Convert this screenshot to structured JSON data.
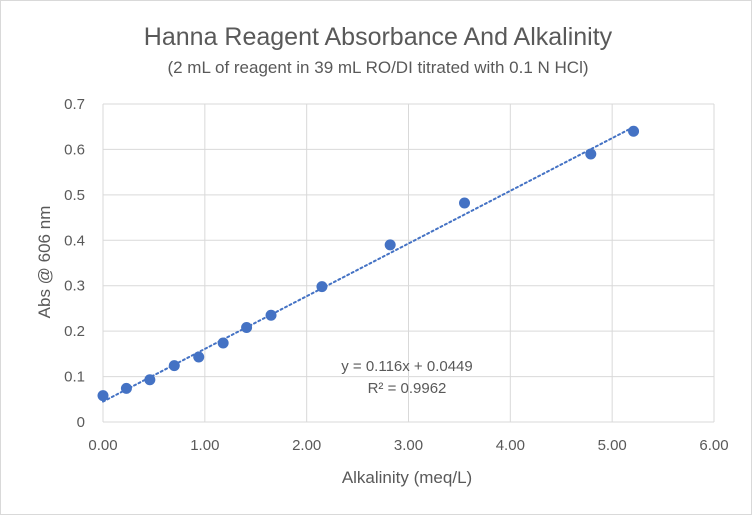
{
  "chart_data": {
    "type": "scatter",
    "title": "Hanna Reagent Absorbance And Alkalinity",
    "subtitle": "(2 mL of reagent in 39 mL RO/DI titrated with 0.1 N HCl)",
    "xlabel": "Alkalinity (meq/L)",
    "ylabel": "Abs @ 606 nm",
    "xlim": [
      0,
      6
    ],
    "ylim": [
      0,
      0.7
    ],
    "x_ticks": [
      "0.00",
      "1.00",
      "2.00",
      "3.00",
      "4.00",
      "5.00",
      "6.00"
    ],
    "y_ticks": [
      "0",
      "0.1",
      "0.2",
      "0.3",
      "0.4",
      "0.5",
      "0.6",
      "0.7"
    ],
    "grid": true,
    "series": [
      {
        "color": "#4472c4",
        "points": [
          {
            "x": 0.0,
            "y": 0.058
          },
          {
            "x": 0.23,
            "y": 0.074
          },
          {
            "x": 0.46,
            "y": 0.093
          },
          {
            "x": 0.7,
            "y": 0.124
          },
          {
            "x": 0.94,
            "y": 0.143
          },
          {
            "x": 1.18,
            "y": 0.174
          },
          {
            "x": 1.41,
            "y": 0.208
          },
          {
            "x": 1.65,
            "y": 0.235
          },
          {
            "x": 2.15,
            "y": 0.298
          },
          {
            "x": 2.82,
            "y": 0.39
          },
          {
            "x": 3.55,
            "y": 0.482
          },
          {
            "x": 4.79,
            "y": 0.59
          },
          {
            "x": 5.21,
            "y": 0.64
          }
        ]
      }
    ],
    "trendline": {
      "type": "linear",
      "style": "dotted",
      "color": "#4472c4",
      "slope": 0.116,
      "intercept": 0.0449,
      "x_range": [
        0,
        5.21
      ],
      "equation_label": "y = 0.116x + 0.0449",
      "r2_label": "R² = 0.9962"
    }
  }
}
